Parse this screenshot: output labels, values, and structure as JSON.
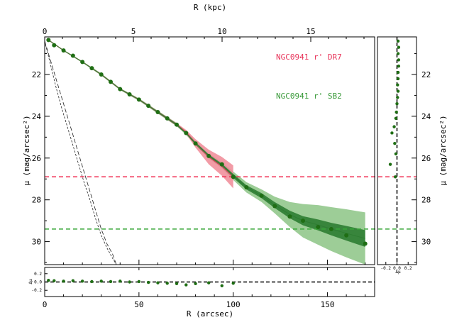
{
  "chart_data": {
    "type": "scatter",
    "top_axis": {
      "label": "R (kpc)",
      "ticks": [
        0,
        5,
        10,
        15
      ],
      "range": [
        0,
        18.6
      ]
    },
    "bottom_axis": {
      "label": "R (arcsec)",
      "ticks": [
        0,
        50,
        100,
        150
      ],
      "range": [
        0,
        175
      ]
    },
    "left_axis": {
      "label": "μ (mag/arcsec²)",
      "ticks": [
        22,
        24,
        26,
        28,
        30
      ],
      "range": [
        31.1,
        20.2
      ],
      "inverted": true
    },
    "right_axis": {
      "label": "μ (mag/arcsec²)",
      "ticks": [
        22,
        24,
        26,
        28,
        30
      ]
    },
    "residual_panel": {
      "ylabel": "Δμ",
      "ticks": [
        "0.2",
        "0.0",
        "-0.2"
      ],
      "tick_values": [
        0.2,
        0.0,
        -0.2
      ],
      "range": [
        -0.35,
        0.35
      ]
    },
    "side_panel": {
      "xlabel": "Δμ",
      "ticks": [
        "-0.2",
        "0.0",
        "0.2"
      ],
      "tick_values": [
        -0.2,
        0.0,
        0.2
      ],
      "range": [
        -0.35,
        0.35
      ]
    },
    "legend": {
      "placement": "top-right",
      "entries": [
        {
          "label": "NGC0941 r' DR7",
          "color": "#e8345a"
        },
        {
          "label": "NGC0941 r' SB2",
          "color": "#3a9a3a"
        }
      ]
    },
    "limits": [
      {
        "name": "DR7 limit",
        "mu": 26.9,
        "color": "#f0284e"
      },
      {
        "name": "SB2 limit",
        "mu": 29.4,
        "color": "#39a839"
      }
    ],
    "points": {
      "color": "#1f6e14",
      "r": [
        2,
        5,
        10,
        15,
        20,
        25,
        30,
        35,
        40,
        45,
        50,
        55,
        60,
        65,
        70,
        75,
        80,
        87,
        94,
        100,
        107,
        115,
        122,
        130,
        137,
        145,
        152,
        160,
        170
      ],
      "mu": [
        20.35,
        20.6,
        20.85,
        21.1,
        21.4,
        21.7,
        22.0,
        22.35,
        22.7,
        22.95,
        23.2,
        23.5,
        23.8,
        24.1,
        24.4,
        24.8,
        25.3,
        25.9,
        26.3,
        26.9,
        27.4,
        27.8,
        28.3,
        28.8,
        29.0,
        29.3,
        29.4,
        29.7,
        30.1
      ]
    },
    "dr7_profile": {
      "color": "#d8445c",
      "band_color": "#f08a96",
      "r": [
        2,
        10,
        20,
        30,
        40,
        50,
        60,
        70,
        75,
        80,
        87,
        94,
        100
      ],
      "mu": [
        20.35,
        20.85,
        21.4,
        22.0,
        22.7,
        23.2,
        23.8,
        24.4,
        24.75,
        25.3,
        25.95,
        26.4,
        26.9
      ],
      "err": [
        0.02,
        0.02,
        0.02,
        0.03,
        0.03,
        0.04,
        0.05,
        0.07,
        0.1,
        0.2,
        0.35,
        0.45,
        0.55
      ]
    },
    "sb2_profile": {
      "color": "#2e7d32",
      "band_color": "#8cc485",
      "r": [
        2,
        10,
        20,
        30,
        40,
        50,
        60,
        70,
        75,
        80,
        87,
        94,
        100,
        107,
        115,
        122,
        130,
        137,
        145,
        152,
        160,
        170
      ],
      "mu": [
        20.35,
        20.85,
        21.4,
        22.0,
        22.7,
        23.2,
        23.8,
        24.4,
        24.8,
        25.3,
        25.9,
        26.35,
        26.85,
        27.4,
        27.8,
        28.25,
        28.7,
        29.0,
        29.2,
        29.4,
        29.6,
        29.85
      ],
      "err_inner": [
        0.02,
        0.02,
        0.02,
        0.03,
        0.03,
        0.03,
        0.04,
        0.05,
        0.05,
        0.06,
        0.07,
        0.08,
        0.09,
        0.1,
        0.12,
        0.14,
        0.18,
        0.22,
        0.26,
        0.3,
        0.35,
        0.4
      ],
      "err_outer": [
        0.03,
        0.03,
        0.04,
        0.05,
        0.05,
        0.06,
        0.07,
        0.08,
        0.09,
        0.1,
        0.12,
        0.15,
        0.2,
        0.25,
        0.3,
        0.4,
        0.6,
        0.8,
        0.95,
        1.05,
        1.15,
        1.25
      ]
    },
    "psf_curves": {
      "color": "#222222",
      "r": [
        0,
        3,
        6,
        9,
        12,
        15,
        18,
        21,
        24,
        27,
        30,
        33,
        36,
        38
      ],
      "mu_a": [
        20.4,
        21.3,
        22.2,
        23.1,
        24.0,
        24.9,
        25.8,
        26.7,
        27.6,
        28.5,
        29.4,
        30.1,
        30.6,
        31.1
      ],
      "mu_b": [
        20.4,
        21.5,
        22.6,
        23.6,
        24.5,
        25.4,
        26.3,
        27.2,
        28.0,
        28.9,
        29.7,
        30.3,
        30.8,
        31.1
      ]
    },
    "residuals": {
      "r": [
        2,
        5,
        10,
        15,
        20,
        25,
        30,
        35,
        40,
        45,
        50,
        55,
        60,
        65,
        70,
        75,
        80,
        87,
        94,
        100
      ],
      "dmu": [
        0.04,
        0.03,
        0.02,
        0.03,
        0.02,
        0.01,
        0.02,
        0.01,
        0.02,
        0.0,
        0.01,
        -0.01,
        -0.02,
        -0.03,
        -0.04,
        -0.07,
        -0.04,
        -0.02,
        -0.09,
        -0.03
      ]
    },
    "side_residuals": {
      "mu": [
        20.4,
        20.7,
        21.0,
        21.3,
        21.6,
        21.9,
        22.2,
        22.5,
        22.8,
        23.1,
        23.4,
        23.8,
        24.1,
        24.5,
        24.8,
        25.3,
        25.8,
        26.3,
        26.9
      ],
      "dmu": [
        0.02,
        0.03,
        0.02,
        0.03,
        0.03,
        0.02,
        0.02,
        0.01,
        0.02,
        0.01,
        0.0,
        -0.01,
        -0.02,
        -0.05,
        -0.09,
        -0.04,
        -0.02,
        -0.12,
        -0.03
      ]
    }
  }
}
